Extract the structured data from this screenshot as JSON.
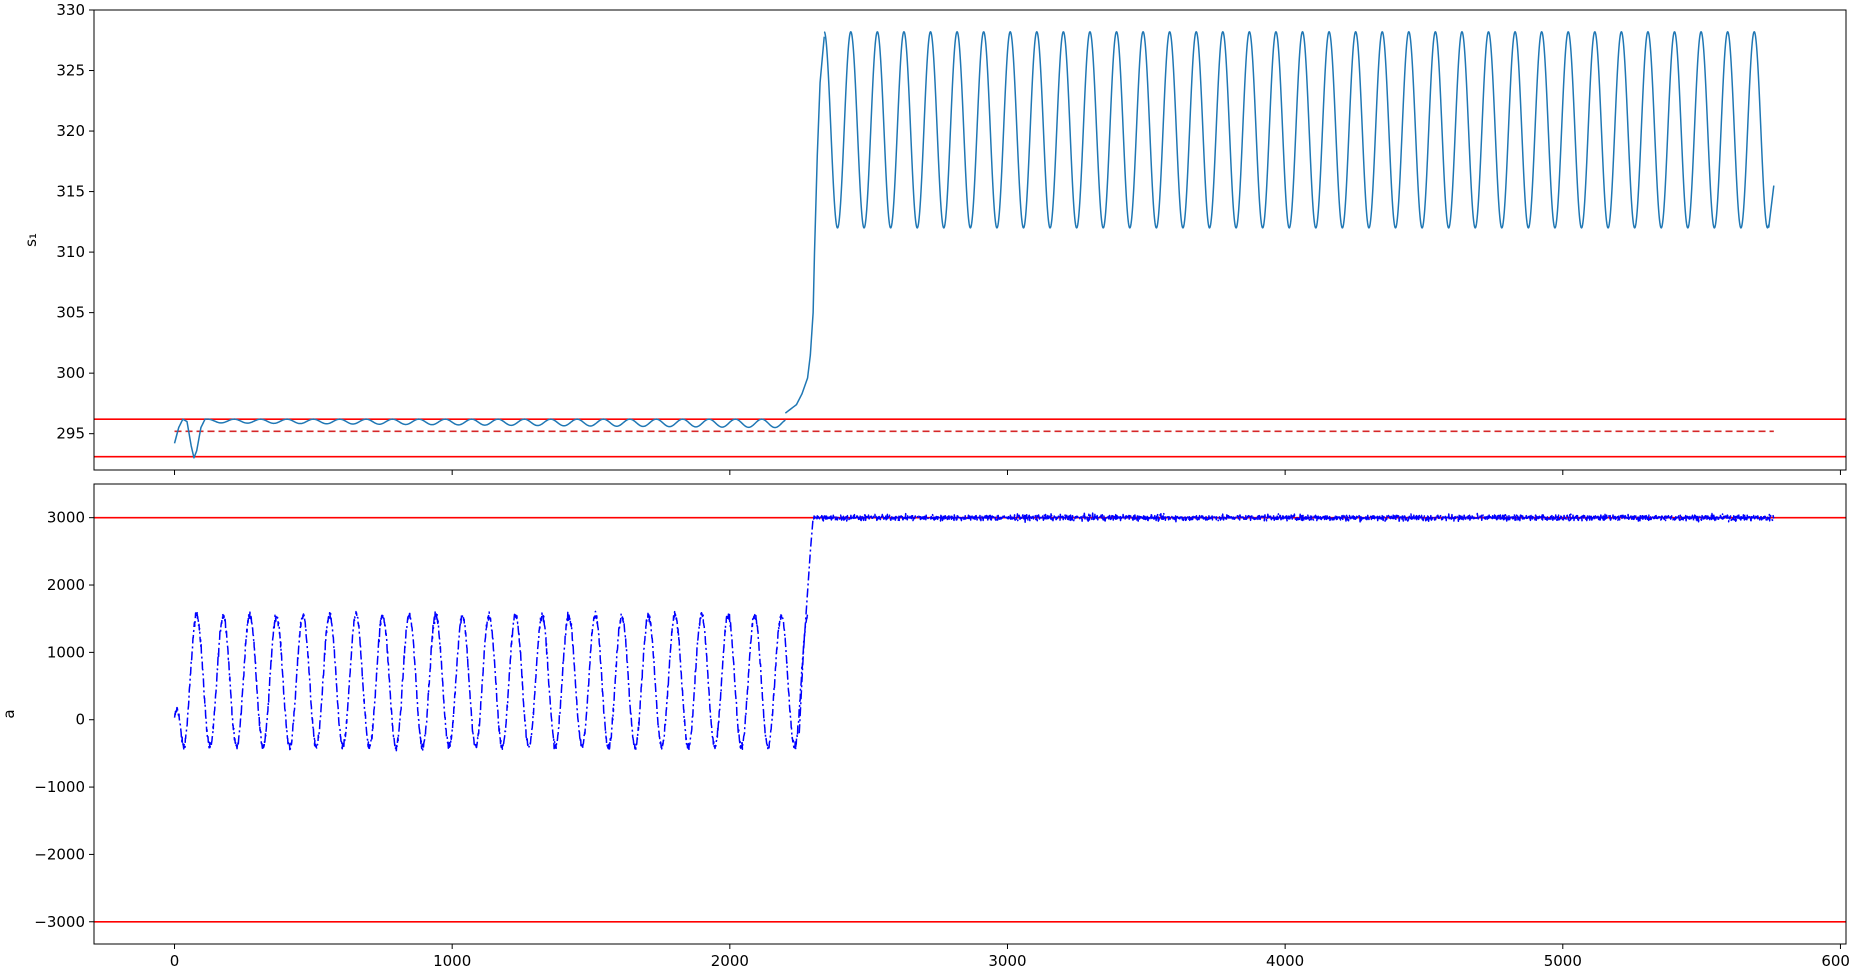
{
  "chart_data": [
    {
      "type": "line",
      "title": "",
      "xlabel": "",
      "ylabel": "s₁",
      "xlim": [
        -290,
        6020
      ],
      "ylim": [
        292,
        330
      ],
      "xticks": [
        0,
        1000,
        2000,
        3000,
        4000,
        5000,
        6000
      ],
      "xtick_labels": [
        "",
        "",
        "",
        "",
        "",
        "",
        ""
      ],
      "yticks": [
        295,
        300,
        305,
        310,
        315,
        320,
        325,
        330
      ],
      "ytick_labels": [
        "295",
        "300",
        "305",
        "310",
        "315",
        "320",
        "325",
        "330"
      ],
      "grid": false,
      "series": [
        {
          "color": "#1f77b4",
          "style": "solid",
          "segments": [
            {
              "kind": "transient",
              "x": [
                0,
                15,
                30,
                45,
                60,
                70,
                80,
                95,
                110,
                120
              ],
              "y": [
                294.2,
                295.5,
                296.2,
                296.0,
                294.0,
                293.0,
                293.6,
                295.5,
                296.2,
                296.2
              ]
            },
            {
              "kind": "decaying_oscillation",
              "x_start": 120,
              "x_end": 2200,
              "mean": 296.2,
              "amplitude_start": 0.15,
              "amplitude_end": 0.35,
              "period": 95
            },
            {
              "kind": "rise",
              "x": [
                2200,
                2240,
                2260,
                2280,
                2290,
                2300,
                2305,
                2315,
                2325,
                2340
              ],
              "y": [
                296.7,
                297.4,
                298.3,
                299.6,
                301.5,
                305.0,
                310.0,
                318.0,
                324.0,
                327.8
              ]
            },
            {
              "kind": "sinusoid",
              "x_start": 2340,
              "x_end": 5760,
              "mean": 320.1,
              "amplitude": 8.1,
              "period": 95.7,
              "peak_x": 2340,
              "last_peak_x": 5719,
              "end_y": 315.5
            }
          ]
        }
      ],
      "reference_lines": [
        {
          "y": 296.2,
          "color": "#ff0000",
          "style": "solid",
          "x_span": "full"
        },
        {
          "y": 293.1,
          "color": "#ff0000",
          "style": "solid",
          "x_span": "full"
        },
        {
          "y": 295.2,
          "color": "#d62728",
          "style": "dashed",
          "x_start": 0,
          "x_end": 5760
        }
      ]
    },
    {
      "type": "line",
      "title": "",
      "xlabel": "",
      "ylabel": "a",
      "xlim": [
        -290,
        6020
      ],
      "ylim": [
        -3330,
        3500
      ],
      "xticks": [
        0,
        1000,
        2000,
        3000,
        4000,
        5000,
        6000
      ],
      "xtick_labels": [
        "0",
        "1000",
        "2000",
        "3000",
        "4000",
        "5000",
        "6000"
      ],
      "yticks": [
        -3000,
        -2000,
        -1000,
        0,
        1000,
        2000,
        3000
      ],
      "ytick_labels": [
        "−3000",
        "−2000",
        "−1000",
        "0",
        "1000",
        "2000",
        "3000"
      ],
      "grid": false,
      "series": [
        {
          "color": "#0000ff",
          "style": "dashdot",
          "segments": [
            {
              "kind": "oscillation",
              "x_start": 0,
              "x_end": 2280,
              "start_y": 0,
              "low": -400,
              "high": 1550,
              "period": 95.7,
              "first_peak_x": 80,
              "noise": 60
            },
            {
              "kind": "rise",
              "x": [
                2250,
                2265,
                2280,
                2290,
                2300
              ],
              "y": [
                -200,
                1000,
                1900,
                2500,
                3000
              ]
            },
            {
              "kind": "noisy_plateau",
              "x_start": 2300,
              "x_end": 5760,
              "mean": 3000,
              "noise": 45
            }
          ]
        }
      ],
      "reference_lines": [
        {
          "y": 3000,
          "color": "#ff0000",
          "style": "solid",
          "x_span": "full"
        },
        {
          "y": -3000,
          "color": "#ff0000",
          "style": "solid",
          "x_span": "full"
        }
      ]
    }
  ]
}
